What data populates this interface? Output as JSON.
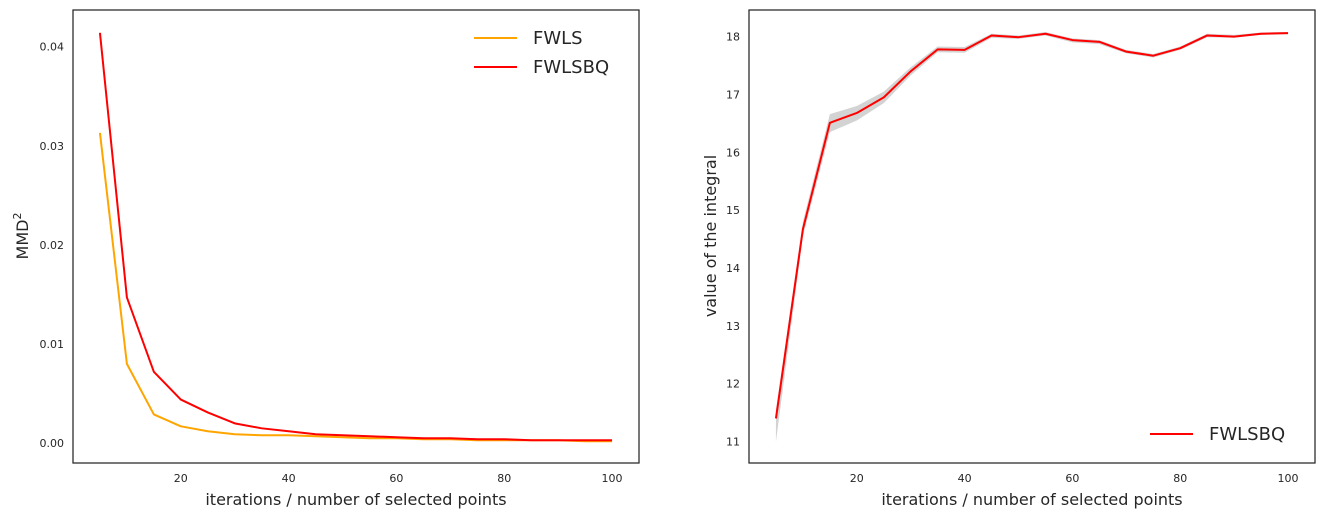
{
  "chart_data": [
    {
      "type": "line",
      "xlabel": "iterations / number of selected points",
      "ylabel": "MMD",
      "ylabel_superscript": "2",
      "xlim": [
        0,
        105
      ],
      "ylim": [
        -0.002,
        0.0437
      ],
      "x_ticks": [
        20,
        40,
        60,
        80,
        100
      ],
      "x_tick_labels": [
        "20",
        "40",
        "60",
        "80",
        "100"
      ],
      "y_ticks": [
        0,
        0.01,
        0.02,
        0.03,
        0.04
      ],
      "y_tick_labels": [
        "0.00",
        "0.01",
        "0.02",
        "0.03",
        "0.04"
      ],
      "grid": false,
      "legend_position": "top-right",
      "x": [
        5,
        10,
        15,
        20,
        25,
        30,
        35,
        40,
        45,
        50,
        55,
        60,
        65,
        70,
        75,
        80,
        85,
        90,
        95,
        100
      ],
      "series": [
        {
          "name": "FWLS",
          "color": "#ffa500",
          "values": [
            0.0313,
            0.008,
            0.0029,
            0.0017,
            0.0012,
            0.0009,
            0.0008,
            0.0008,
            0.0007,
            0.0006,
            0.0005,
            0.0005,
            0.0004,
            0.0004,
            0.0003,
            0.0003,
            0.0003,
            0.0003,
            0.0002,
            0.0002
          ]
        },
        {
          "name": "FWLSBQ",
          "color": "#ff0000",
          "values": [
            0.0414,
            0.0147,
            0.0072,
            0.0044,
            0.0031,
            0.002,
            0.0015,
            0.0012,
            0.0009,
            0.0008,
            0.0007,
            0.0006,
            0.0005,
            0.0005,
            0.0004,
            0.0004,
            0.0003,
            0.0003,
            0.0003,
            0.0003
          ]
        }
      ]
    },
    {
      "type": "line",
      "xlabel": "iterations / number of selected points",
      "ylabel": "value of the integral",
      "xlim": [
        0,
        105
      ],
      "ylim": [
        10.63,
        18.46
      ],
      "x_ticks": [
        20,
        40,
        60,
        80,
        100
      ],
      "x_tick_labels": [
        "20",
        "40",
        "60",
        "80",
        "100"
      ],
      "y_ticks": [
        11,
        12,
        13,
        14,
        15,
        16,
        17,
        18
      ],
      "y_tick_labels": [
        "11",
        "12",
        "13",
        "14",
        "15",
        "16",
        "17",
        "18"
      ],
      "grid": false,
      "legend_position": "bottom-right",
      "x": [
        5,
        10,
        15,
        20,
        25,
        30,
        35,
        40,
        45,
        50,
        55,
        60,
        65,
        70,
        75,
        80,
        85,
        90,
        95,
        100
      ],
      "series": [
        {
          "name": "FWLSBQ",
          "color": "#ff0000",
          "band_color": "#c8c8c8",
          "values": [
            11.4,
            14.67,
            16.51,
            16.68,
            16.95,
            17.4,
            17.78,
            17.77,
            18.02,
            17.99,
            18.05,
            17.94,
            17.91,
            17.74,
            17.67,
            17.8,
            18.02,
            18.0,
            18.05,
            18.06
          ],
          "lower": [
            11.0,
            14.55,
            16.35,
            16.55,
            16.85,
            17.33,
            17.73,
            17.72,
            17.98,
            17.96,
            18.02,
            17.9,
            17.87,
            17.71,
            17.64,
            17.77,
            17.99,
            17.98,
            18.03,
            18.04
          ],
          "upper": [
            11.55,
            14.8,
            16.66,
            16.8,
            17.05,
            17.47,
            17.83,
            17.82,
            18.05,
            18.02,
            18.08,
            17.97,
            17.94,
            17.77,
            17.7,
            17.83,
            18.05,
            18.03,
            18.07,
            18.08
          ]
        }
      ]
    }
  ]
}
